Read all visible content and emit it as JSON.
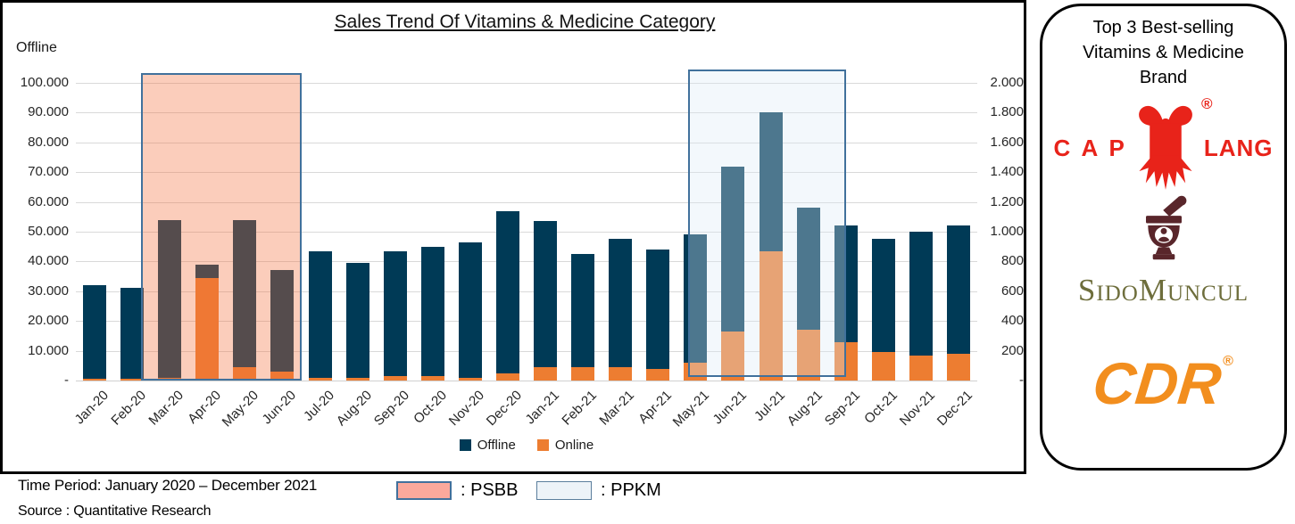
{
  "chart": {
    "title": "Sales Trend Of Vitamins & Medicine Category",
    "legend": {
      "offline": "Offline",
      "online": "Online"
    }
  },
  "chart_data": {
    "type": "bar",
    "title": "Sales Trend Of Vitamins & Medicine Category",
    "categories": [
      "Jan-20",
      "Feb-20",
      "Mar-20",
      "Apr-20",
      "May-20",
      "Jun-20",
      "Jul-20",
      "Aug-20",
      "Sep-20",
      "Oct-20",
      "Nov-20",
      "Dec-20",
      "Jan-21",
      "Feb-21",
      "Mar-21",
      "Apr-21",
      "May-21",
      "Jun-21",
      "Jul-21",
      "Aug-21",
      "Sep-21",
      "Oct-21",
      "Nov-21",
      "Dec-21"
    ],
    "series": [
      {
        "name": "Offline",
        "axis": "left",
        "color": "#003A56",
        "values": [
          32000,
          31000,
          54000,
          39000,
          54000,
          37000,
          43500,
          39500,
          43500,
          45000,
          46500,
          57000,
          53500,
          42500,
          47500,
          44000,
          49000,
          72000,
          90000,
          58000,
          52000,
          47500,
          50000,
          52000
        ]
      },
      {
        "name": "Online",
        "axis": "right",
        "color": "#ED7D31",
        "values": [
          10,
          10,
          20,
          690,
          90,
          60,
          20,
          15,
          30,
          30,
          20,
          50,
          90,
          90,
          90,
          80,
          120,
          330,
          870,
          340,
          260,
          190,
          170,
          180
        ]
      }
    ],
    "left_axis": {
      "title": "Offline",
      "range": [
        0,
        100000
      ],
      "ticks": [
        "100.000",
        "90.000",
        "80.000",
        "70.000",
        "60.000",
        "50.000",
        "40.000",
        "30.000",
        "20.000",
        "10.000",
        "-"
      ]
    },
    "right_axis": {
      "range": [
        0,
        2000
      ],
      "ticks": [
        "2.000",
        "1.800",
        "1.600",
        "1.400",
        "1.200",
        "1.000",
        "800",
        "600",
        "400",
        "200",
        "-"
      ]
    },
    "grid": true,
    "legend_position": "bottom",
    "highlights": [
      {
        "label": "PSBB",
        "from": "Mar-20",
        "to": "Jun-20",
        "fill": "rgba(243,112,60,0.35)",
        "border": "#41719C"
      },
      {
        "label": "PPKM",
        "from": "May-21",
        "to": "Sep-21",
        "fill": "rgba(222,235,247,0.35)",
        "border": "#41719C"
      }
    ]
  },
  "footer": {
    "time_period": "Time Period: January 2020 – December 2021",
    "source": "Source : Quantitative Research",
    "psbb_label": ": PSBB",
    "ppkm_label": ": PPKM"
  },
  "side_panel": {
    "title_line1": "Top 3 Best-selling",
    "title_line2": "Vitamins & Medicine",
    "title_line3": "Brand",
    "brands": [
      {
        "name": "Cap Lang",
        "text_left": "C A P",
        "text_right": "LANG",
        "registered": "®"
      },
      {
        "name": "Sido Muncul",
        "text": "SidoMuncul"
      },
      {
        "name": "CDR",
        "text": "CDR",
        "registered": "®"
      }
    ]
  },
  "colors": {
    "offline_bar": "#003A56",
    "online_bar": "#ED7D31",
    "psbb_overlay": "rgba(243,112,60,0.35)",
    "ppkm_overlay": "rgba(222,235,247,0.35)",
    "highlight_border": "#41719C",
    "gridline": "#D9D9D9",
    "psbb_swatch": "#FBA99C",
    "ppkm_swatch": "#EDF3F8",
    "caplang_red": "#E8231A",
    "sido_olive": "#6E6E3C",
    "sido_maroon": "#59262B",
    "cdr_orange": "#F28E1E"
  }
}
